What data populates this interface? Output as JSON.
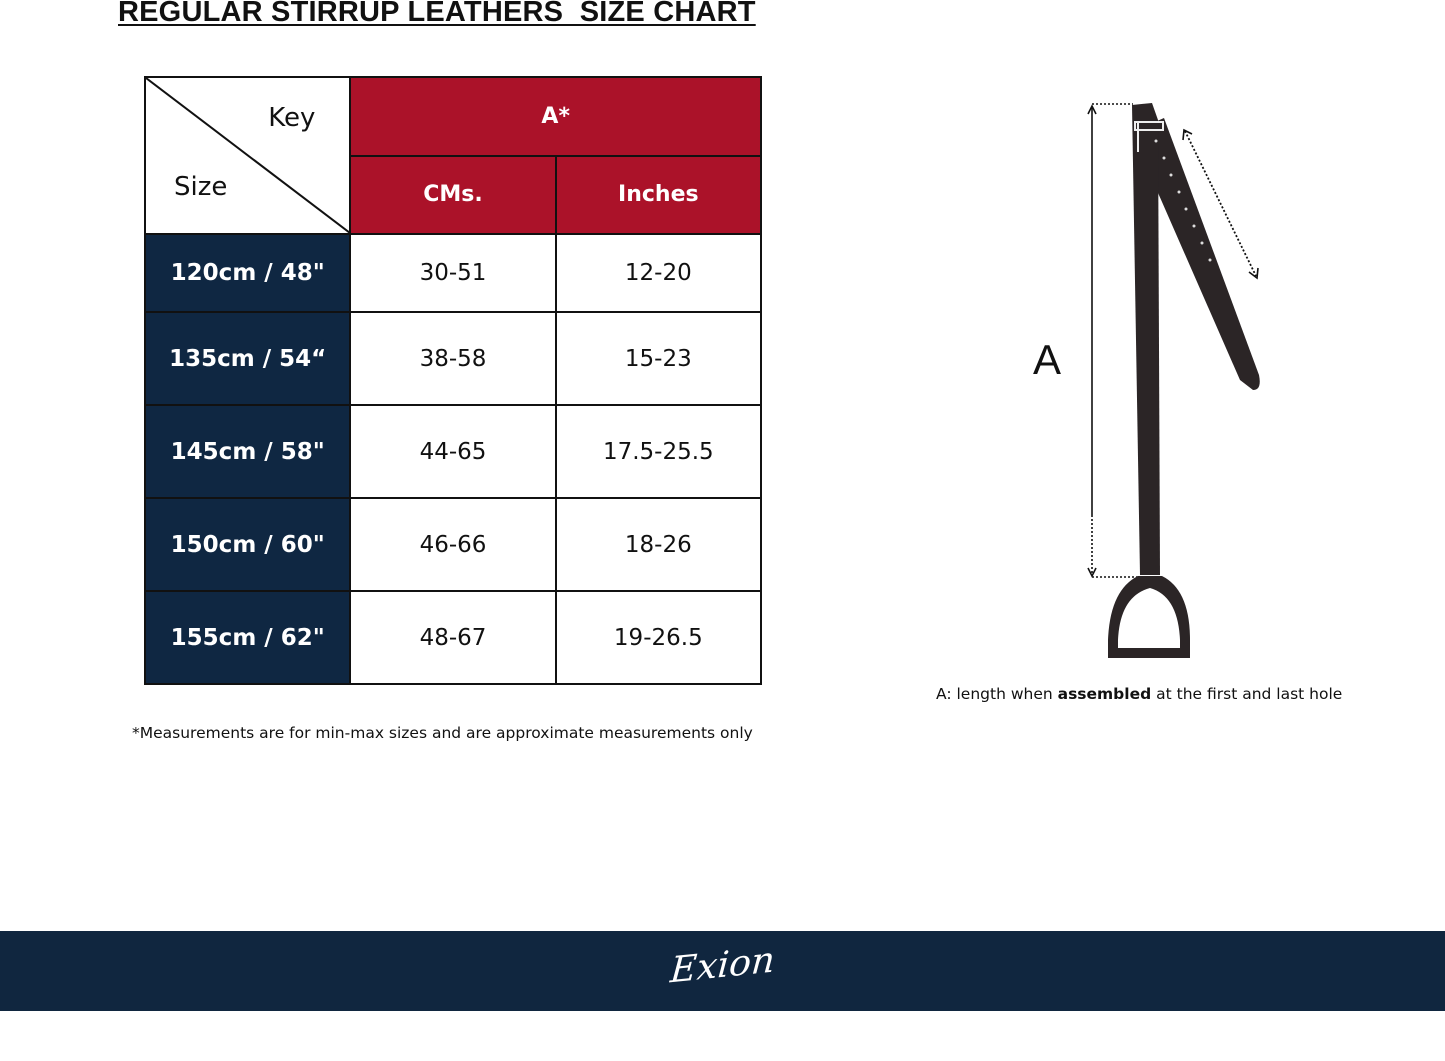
{
  "title": "REGULAR STIRRUP LEATHERS  SIZE CHART",
  "table": {
    "key_label": "Key",
    "size_label": "Size",
    "group_header": "A*",
    "columns": [
      "CMs.",
      "Inches"
    ],
    "rows": [
      {
        "size": "120cm / 48\"",
        "cms": "30-51",
        "inches": "12-20"
      },
      {
        "size": "135cm / 54“",
        "cms": "38-58",
        "inches": "15-23"
      },
      {
        "size": "145cm / 58\"",
        "cms": "44-65",
        "inches": "17.5-25.5"
      },
      {
        "size": "150cm / 60\"",
        "cms": "46-66",
        "inches": "18-26"
      },
      {
        "size": "155cm / 62\"",
        "cms": "48-67",
        "inches": "19-26.5"
      }
    ]
  },
  "note": "*Measurements are for min-max sizes and are approximate measurements only",
  "diagram": {
    "label": "A",
    "caption_prefix": "A: length when ",
    "caption_bold": "assembled",
    "caption_suffix": " at the first and last hole"
  },
  "footer": {
    "logo": "Exion"
  },
  "colors": {
    "header_red": "#ab1229",
    "navy": "#0f2742",
    "leather": "#2b2526"
  }
}
